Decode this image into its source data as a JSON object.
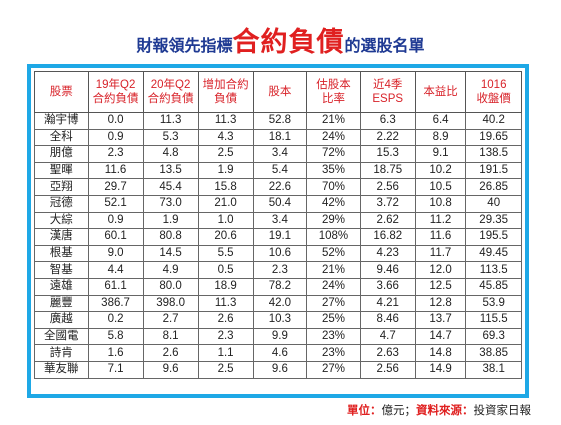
{
  "title": {
    "part1": "財報領先指標",
    "part2": "合約負債",
    "part3": "的選股名單"
  },
  "table": {
    "headers": [
      [
        "股票"
      ],
      [
        "19年Q2",
        "合約負債"
      ],
      [
        "20年Q2",
        "合約負債"
      ],
      [
        "增加合約",
        "負債"
      ],
      [
        "股本"
      ],
      [
        "估股本",
        "比率"
      ],
      [
        "近4季",
        "ESPS"
      ],
      [
        "本益比"
      ],
      [
        "1016",
        "收盤價"
      ]
    ],
    "rows": [
      [
        "瀚宇博",
        "0.0",
        "11.3",
        "11.3",
        "52.8",
        "21%",
        "6.3",
        "6.4",
        "40.2"
      ],
      [
        "全科",
        "0.9",
        "5.3",
        "4.3",
        "18.1",
        "24%",
        "2.22",
        "8.9",
        "19.65"
      ],
      [
        "朋億",
        "2.3",
        "4.8",
        "2.5",
        "3.4",
        "72%",
        "15.3",
        "9.1",
        "138.5"
      ],
      [
        "聖暉",
        "11.6",
        "13.5",
        "1.9",
        "5.4",
        "35%",
        "18.75",
        "10.2",
        "191.5"
      ],
      [
        "亞翔",
        "29.7",
        "45.4",
        "15.8",
        "22.6",
        "70%",
        "2.56",
        "10.5",
        "26.85"
      ],
      [
        "冠德",
        "52.1",
        "73.0",
        "21.0",
        "50.4",
        "42%",
        "3.72",
        "10.8",
        "40"
      ],
      [
        "大綜",
        "0.9",
        "1.9",
        "1.0",
        "3.4",
        "29%",
        "2.62",
        "11.2",
        "29.35"
      ],
      [
        "漢唐",
        "60.1",
        "80.8",
        "20.6",
        "19.1",
        "108%",
        "16.82",
        "11.6",
        "195.5"
      ],
      [
        "根基",
        "9.0",
        "14.5",
        "5.5",
        "10.6",
        "52%",
        "4.23",
        "11.7",
        "49.45"
      ],
      [
        "智基",
        "4.4",
        "4.9",
        "0.5",
        "2.3",
        "21%",
        "9.46",
        "12.0",
        "113.5"
      ],
      [
        "遠雄",
        "61.1",
        "80.0",
        "18.9",
        "78.2",
        "24%",
        "3.66",
        "12.5",
        "45.85"
      ],
      [
        "麗豐",
        "386.7",
        "398.0",
        "11.3",
        "42.0",
        "27%",
        "4.21",
        "12.8",
        "53.9"
      ],
      [
        "廣越",
        "0.2",
        "2.7",
        "2.6",
        "10.3",
        "25%",
        "8.46",
        "13.7",
        "115.5"
      ],
      [
        "全國電",
        "5.8",
        "8.1",
        "2.3",
        "9.9",
        "23%",
        "4.7",
        "14.7",
        "69.3"
      ],
      [
        "詩肯",
        "1.6",
        "2.6",
        "1.1",
        "4.6",
        "23%",
        "2.63",
        "14.8",
        "38.85"
      ],
      [
        "華友聯",
        "7.1",
        "9.6",
        "2.5",
        "9.6",
        "27%",
        "2.56",
        "14.9",
        "38.1"
      ]
    ]
  },
  "source": {
    "unit_label": "單位：",
    "unit_value": "億元；",
    "source_label": "資料來源：",
    "source_value": "投資家日報"
  },
  "colors": {
    "title_blue": "#1f3a93",
    "title_red": "#e02020",
    "header_red": "#d8232a",
    "frame_blue": "#1ea8e6"
  }
}
